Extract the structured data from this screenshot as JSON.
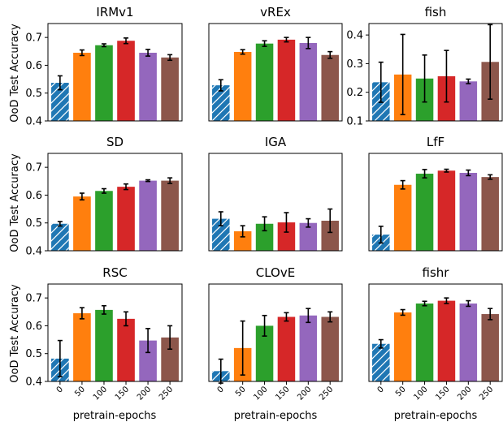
{
  "figure": {
    "ylabel": "OoD Test Accuracy",
    "xlabel": "pretrain-epochs"
  },
  "chart_data": [
    {
      "type": "bar",
      "title": "IRMv1",
      "categories": [
        "0",
        "50",
        "100",
        "150",
        "200",
        "250"
      ],
      "values": [
        0.537,
        0.645,
        0.672,
        0.688,
        0.645,
        0.628
      ],
      "errors": [
        0.025,
        0.01,
        0.005,
        0.01,
        0.012,
        0.01
      ],
      "ylim": [
        0.4,
        0.75
      ],
      "yticks": [
        "0.4",
        "0.5",
        "0.6",
        "0.7"
      ],
      "colors": [
        "#1f77b4",
        "#ff7f0e",
        "#2ca02c",
        "#d62728",
        "#9467bd",
        "#8c564b"
      ],
      "hatch_first": true
    },
    {
      "type": "bar",
      "title": "vREx",
      "categories": [
        "0",
        "50",
        "100",
        "150",
        "200",
        "250"
      ],
      "values": [
        0.528,
        0.648,
        0.678,
        0.692,
        0.68,
        0.637
      ],
      "errors": [
        0.02,
        0.008,
        0.01,
        0.008,
        0.02,
        0.012
      ],
      "ylim": [
        0.4,
        0.75
      ],
      "yticks": [
        "0.4",
        "0.5",
        "0.6",
        "0.7"
      ],
      "colors": [
        "#1f77b4",
        "#ff7f0e",
        "#2ca02c",
        "#d62728",
        "#9467bd",
        "#8c564b"
      ],
      "hatch_first": true
    },
    {
      "type": "bar",
      "title": "fish",
      "categories": [
        "0",
        "50",
        "100",
        "150",
        "200",
        "250"
      ],
      "values": [
        0.235,
        0.262,
        0.248,
        0.256,
        0.238,
        0.306
      ],
      "errors": [
        0.07,
        0.14,
        0.082,
        0.09,
        0.008,
        0.13
      ],
      "ylim": [
        0.1,
        0.44
      ],
      "yticks": [
        "0.1",
        "0.2",
        "0.3",
        "0.4"
      ],
      "colors": [
        "#1f77b4",
        "#ff7f0e",
        "#2ca02c",
        "#d62728",
        "#9467bd",
        "#8c564b"
      ],
      "hatch_first": true
    },
    {
      "type": "bar",
      "title": "SD",
      "categories": [
        "0",
        "50",
        "100",
        "150",
        "200",
        "250"
      ],
      "values": [
        0.497,
        0.595,
        0.615,
        0.63,
        0.652,
        0.652
      ],
      "errors": [
        0.008,
        0.012,
        0.008,
        0.01,
        0.003,
        0.01
      ],
      "ylim": [
        0.4,
        0.75
      ],
      "yticks": [
        "0.4",
        "0.5",
        "0.6",
        "0.7"
      ],
      "colors": [
        "#1f77b4",
        "#ff7f0e",
        "#2ca02c",
        "#d62728",
        "#9467bd",
        "#8c564b"
      ],
      "hatch_first": true
    },
    {
      "type": "bar",
      "title": "IGA",
      "categories": [
        "0",
        "50",
        "100",
        "150",
        "200",
        "250"
      ],
      "values": [
        0.515,
        0.47,
        0.497,
        0.502,
        0.5,
        0.508
      ],
      "errors": [
        0.025,
        0.02,
        0.025,
        0.035,
        0.015,
        0.042
      ],
      "ylim": [
        0.4,
        0.75
      ],
      "yticks": [
        "0.4",
        "0.5",
        "0.6",
        "0.7"
      ],
      "colors": [
        "#1f77b4",
        "#ff7f0e",
        "#2ca02c",
        "#d62728",
        "#9467bd",
        "#8c564b"
      ],
      "hatch_first": true
    },
    {
      "type": "bar",
      "title": "LfF",
      "categories": [
        "0",
        "50",
        "100",
        "150",
        "200",
        "250"
      ],
      "values": [
        0.458,
        0.637,
        0.677,
        0.688,
        0.68,
        0.665
      ],
      "errors": [
        0.03,
        0.015,
        0.015,
        0.005,
        0.01,
        0.008
      ],
      "ylim": [
        0.4,
        0.75
      ],
      "yticks": [
        "0.4",
        "0.5",
        "0.6",
        "0.7"
      ],
      "colors": [
        "#1f77b4",
        "#ff7f0e",
        "#2ca02c",
        "#d62728",
        "#9467bd",
        "#8c564b"
      ],
      "hatch_first": true
    },
    {
      "type": "bar",
      "title": "RSC",
      "categories": [
        "0",
        "50",
        "100",
        "150",
        "200",
        "250"
      ],
      "values": [
        0.482,
        0.645,
        0.657,
        0.625,
        0.547,
        0.558
      ],
      "errors": [
        0.065,
        0.02,
        0.015,
        0.025,
        0.043,
        0.042
      ],
      "ylim": [
        0.4,
        0.75
      ],
      "yticks": [
        "0.4",
        "0.5",
        "0.6",
        "0.7"
      ],
      "colors": [
        "#1f77b4",
        "#ff7f0e",
        "#2ca02c",
        "#d62728",
        "#9467bd",
        "#8c564b"
      ],
      "hatch_first": true
    },
    {
      "type": "bar",
      "title": "CLOvE",
      "categories": [
        "0",
        "50",
        "100",
        "150",
        "200",
        "250"
      ],
      "values": [
        0.437,
        0.52,
        0.6,
        0.632,
        0.637,
        0.632
      ],
      "errors": [
        0.043,
        0.097,
        0.037,
        0.015,
        0.025,
        0.018
      ],
      "ylim": [
        0.4,
        0.75
      ],
      "yticks": [
        "0.4",
        "0.5",
        "0.6",
        "0.7"
      ],
      "colors": [
        "#1f77b4",
        "#ff7f0e",
        "#2ca02c",
        "#d62728",
        "#9467bd",
        "#8c564b"
      ],
      "hatch_first": true
    },
    {
      "type": "bar",
      "title": "fishr",
      "categories": [
        "0",
        "50",
        "100",
        "150",
        "200",
        "250"
      ],
      "values": [
        0.535,
        0.648,
        0.68,
        0.69,
        0.68,
        0.642
      ],
      "errors": [
        0.015,
        0.01,
        0.008,
        0.01,
        0.01,
        0.02
      ],
      "ylim": [
        0.4,
        0.75
      ],
      "yticks": [
        "0.4",
        "0.5",
        "0.6",
        "0.7"
      ],
      "colors": [
        "#1f77b4",
        "#ff7f0e",
        "#2ca02c",
        "#d62728",
        "#9467bd",
        "#8c564b"
      ],
      "hatch_first": true
    }
  ]
}
